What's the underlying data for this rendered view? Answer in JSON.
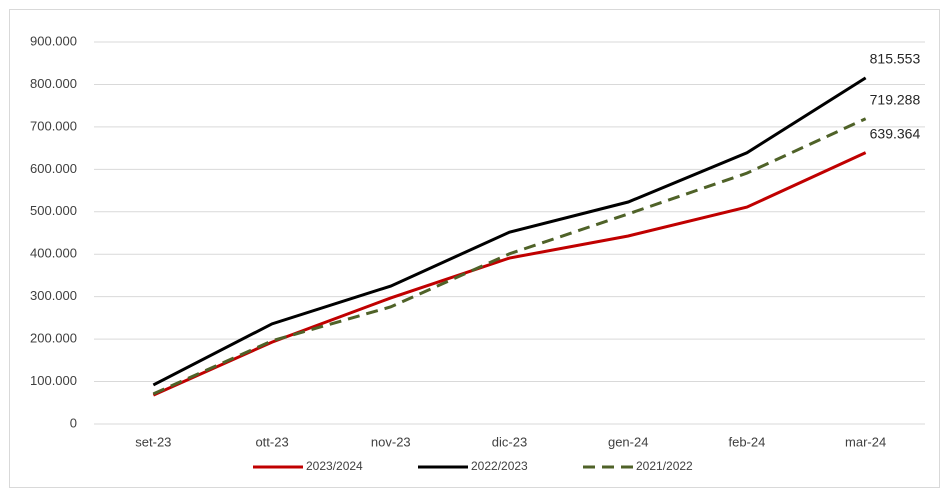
{
  "chart_data": {
    "type": "line",
    "categories": [
      "set-23",
      "ott-23",
      "nov-23",
      "dic-23",
      "gen-24",
      "feb-24",
      "mar-24"
    ],
    "series": [
      {
        "name": "2023/2024",
        "color": "#c00000",
        "dash": false,
        "values": [
          68000,
          193000,
          297000,
          391000,
          443000,
          511000,
          639364
        ],
        "value_labels": [
          null,
          null,
          null,
          null,
          null,
          null,
          "639.364"
        ]
      },
      {
        "name": "2022/2023",
        "color": "#000000",
        "dash": false,
        "values": [
          92000,
          236000,
          325000,
          452000,
          523000,
          639000,
          815553
        ],
        "value_labels": [
          null,
          null,
          null,
          null,
          null,
          null,
          "815.553"
        ]
      },
      {
        "name": "2021/2022",
        "color": "#4f6228",
        "dash": true,
        "values": [
          71000,
          196000,
          276000,
          401000,
          495000,
          591000,
          719288
        ],
        "value_labels": [
          null,
          null,
          null,
          null,
          null,
          null,
          "719.288"
        ]
      }
    ],
    "ylim": [
      0,
      900000
    ],
    "yticks": [
      0,
      {
        "value": 100000,
        "label": "100.000"
      },
      {
        "value": 200000,
        "label": "200.000"
      },
      {
        "value": 300000,
        "label": "300.000"
      },
      {
        "value": 400000,
        "label": "400.000"
      },
      {
        "value": 500000,
        "label": "500.000"
      },
      {
        "value": 600000,
        "label": "600.000"
      },
      {
        "value": 700000,
        "label": "700.000"
      },
      {
        "value": 800000,
        "label": "800.000"
      },
      {
        "value": 900000,
        "label": "900.000"
      }
    ],
    "grid": true,
    "legend": "bottom"
  }
}
